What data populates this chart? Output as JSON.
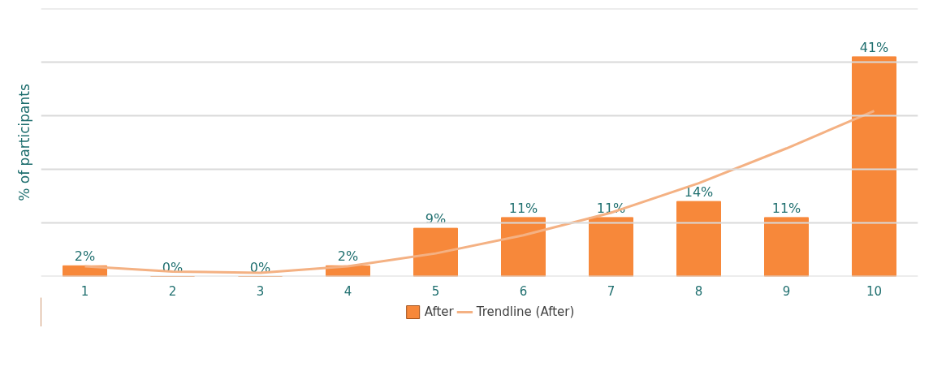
{
  "chart_data": {
    "type": "bar",
    "ylabel": "% of participants",
    "categories": [
      "1",
      "2",
      "3",
      "4",
      "5",
      "6",
      "7",
      "8",
      "9",
      "10"
    ],
    "series": [
      {
        "name": "After",
        "color": "#f7883a",
        "values": [
          2,
          0,
          0,
          2,
          9,
          11,
          11,
          14,
          11,
          41
        ],
        "value_labels": [
          "2%",
          "0%",
          "0%",
          "2%",
          "9%",
          "11%",
          "11%",
          "14%",
          "11%",
          "41%"
        ]
      },
      {
        "name": "Trendline (After)",
        "type": "line",
        "color": "#f4b183",
        "values": [
          1.9,
          0.9,
          0.7,
          1.9,
          4.3,
          7.7,
          11.9,
          17.4,
          23.9,
          30.9
        ]
      }
    ],
    "ylim": [
      0,
      50
    ],
    "yticks": [
      {
        "value": 0,
        "label": null
      },
      {
        "value": 10,
        "label": null
      },
      {
        "value": 20,
        "label": null
      },
      {
        "value": 30,
        "label": null
      },
      {
        "value": 40,
        "label": null
      },
      {
        "value": 50,
        "label": null
      }
    ],
    "tick_labels": "x",
    "grid": "y",
    "legend": "bottom"
  }
}
